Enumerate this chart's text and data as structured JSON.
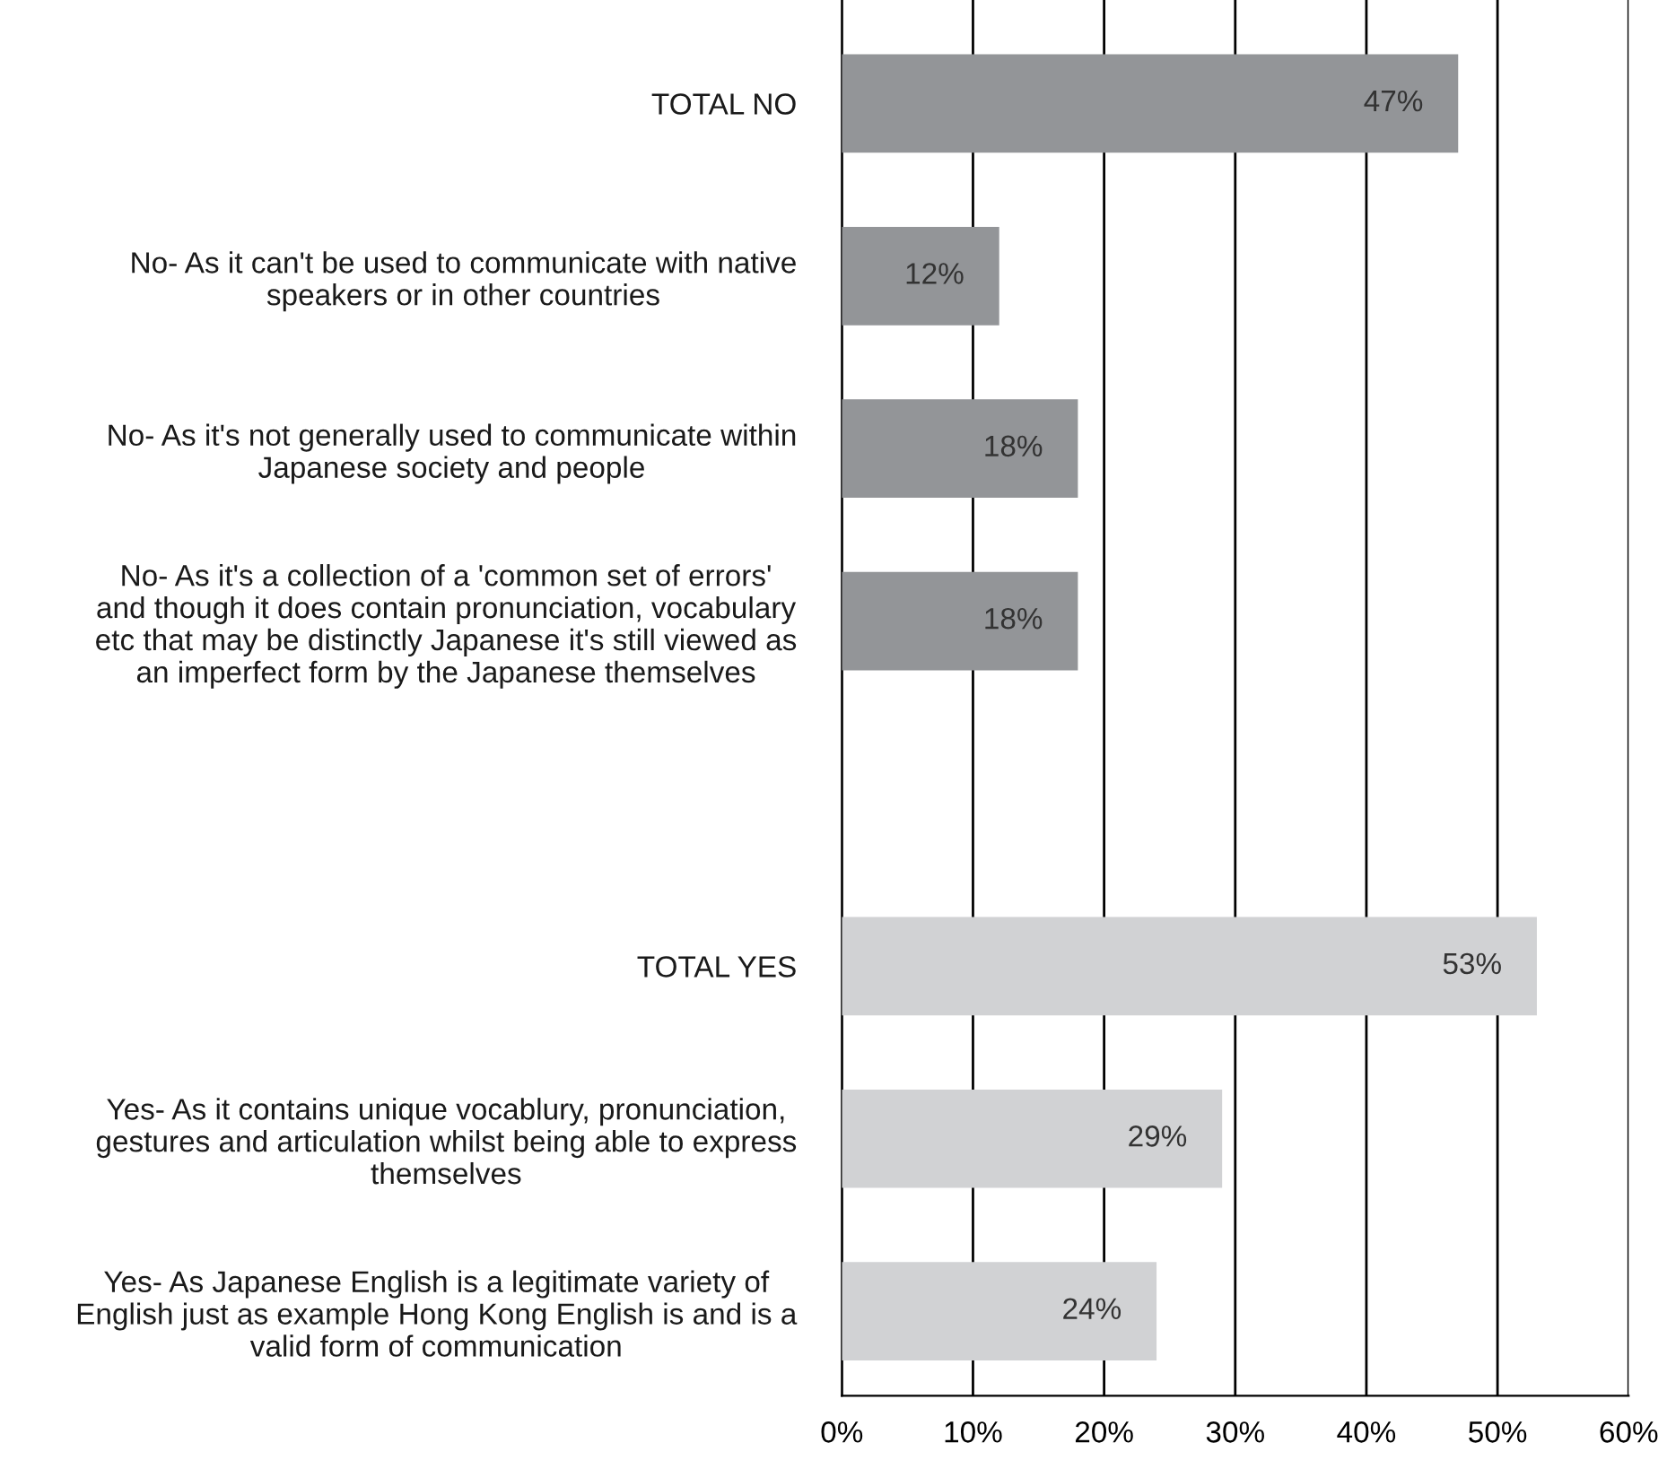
{
  "chart_data": {
    "type": "bar",
    "orientation": "horizontal",
    "categories": [
      "TOTAL NO",
      "No- As it can't be used to communicate with native\nspeakers or in other countries",
      "No- As it's not generally used to communicate within\nJapanese society and people",
      "No- As it's a collection of a 'common set of errors'\nand though it does contain pronunciation, vocabulary\netc that may be distinctly Japanese it's still viewed as\nan imperfect form by the Japanese themselves",
      null,
      "TOTAL YES",
      "Yes- As it contains unique vocablury, pronunciation,\ngestures and articulation whilst being able to express\nthemselves",
      "Yes- As Japanese English is a legitimate variety of\nEnglish just as example Hong Kong English is and is a\nvalid form of communication"
    ],
    "values": [
      47,
      12,
      18,
      18,
      null,
      53,
      29,
      24
    ],
    "colors": [
      "#939598",
      "#939598",
      "#939598",
      "#939598",
      "#939598",
      "#d1d2d4",
      "#d1d2d4",
      "#d1d2d4"
    ],
    "value_labels": [
      "47%",
      "12%",
      "18%",
      "18%",
      null,
      "53%",
      "29%",
      "24%"
    ],
    "xlim": [
      0,
      60
    ],
    "xticks": [
      {
        "value": 0,
        "label": "0%"
      },
      {
        "value": 10,
        "label": "10%"
      },
      {
        "value": 20,
        "label": "20%"
      },
      {
        "value": 30,
        "label": "30%"
      },
      {
        "value": 40,
        "label": "40%"
      },
      {
        "value": 50,
        "label": "50%"
      },
      {
        "value": 60,
        "label": "60%"
      }
    ],
    "grid": "x"
  }
}
